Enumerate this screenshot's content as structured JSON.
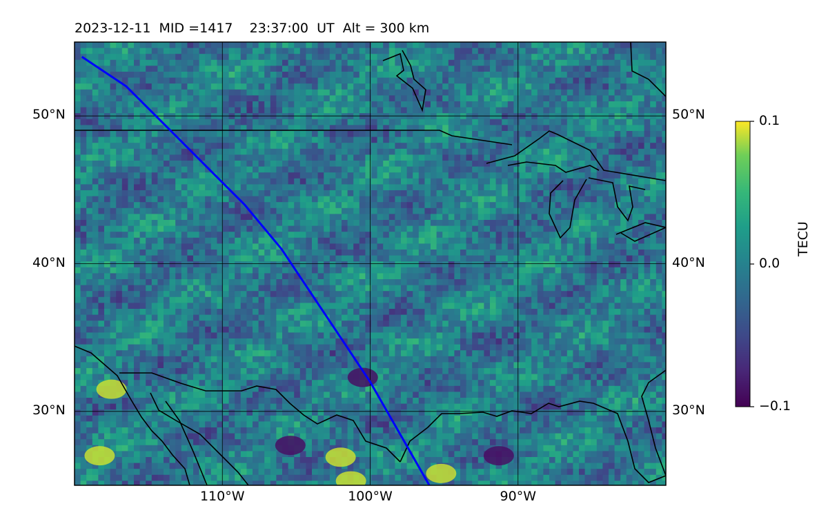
{
  "header": {
    "date": "2023-12-11",
    "mid": "MID =1417",
    "time": "23:37:00",
    "ut": "UT",
    "alt": "Alt = 300 km"
  },
  "map": {
    "lon_range": [
      -120,
      -80
    ],
    "lat_range": [
      25,
      55
    ],
    "lat_ticks": [
      {
        "value": 50,
        "label": "50°N"
      },
      {
        "value": 40,
        "label": "40°N"
      },
      {
        "value": 30,
        "label": "30°N"
      }
    ],
    "lon_ticks": [
      {
        "value": -110,
        "label": "110°W"
      },
      {
        "value": -100,
        "label": "100°W"
      },
      {
        "value": -90,
        "label": "90°W"
      }
    ],
    "gridlines": true,
    "trajectory_color": "#0000ff",
    "trajectory": [
      [
        -119.5,
        54.0
      ],
      [
        -116.5,
        52.0
      ],
      [
        -113.5,
        49.0
      ],
      [
        -110.5,
        46.0
      ],
      [
        -108.5,
        44.0
      ],
      [
        -106.0,
        41.0
      ],
      [
        -104.0,
        38.0
      ],
      [
        -102.0,
        35.0
      ],
      [
        -100.0,
        32.0
      ],
      [
        -98.0,
        28.5
      ],
      [
        -96.0,
        25.0
      ]
    ],
    "highlights": [
      {
        "kind": "high",
        "lon": -117.5,
        "lat": 31.5
      },
      {
        "kind": "high",
        "lon": -118.3,
        "lat": 27.0
      },
      {
        "kind": "high",
        "lon": -95.2,
        "lat": 25.8
      },
      {
        "kind": "high",
        "lon": -101.3,
        "lat": 25.3
      },
      {
        "kind": "high",
        "lon": -102.0,
        "lat": 26.9
      },
      {
        "kind": "low",
        "lon": -91.3,
        "lat": 27.0
      },
      {
        "kind": "low",
        "lon": -105.4,
        "lat": 27.7
      },
      {
        "kind": "low",
        "lon": -100.5,
        "lat": 32.3
      }
    ]
  },
  "colorbar": {
    "label": "TECU",
    "min": -0.1,
    "max": 0.1,
    "ticks": [
      {
        "value": 0.1,
        "label": "0.1"
      },
      {
        "value": 0.0,
        "label": "0.0"
      },
      {
        "value": -0.1,
        "label": "−0.1"
      }
    ],
    "colormap": "viridis"
  }
}
